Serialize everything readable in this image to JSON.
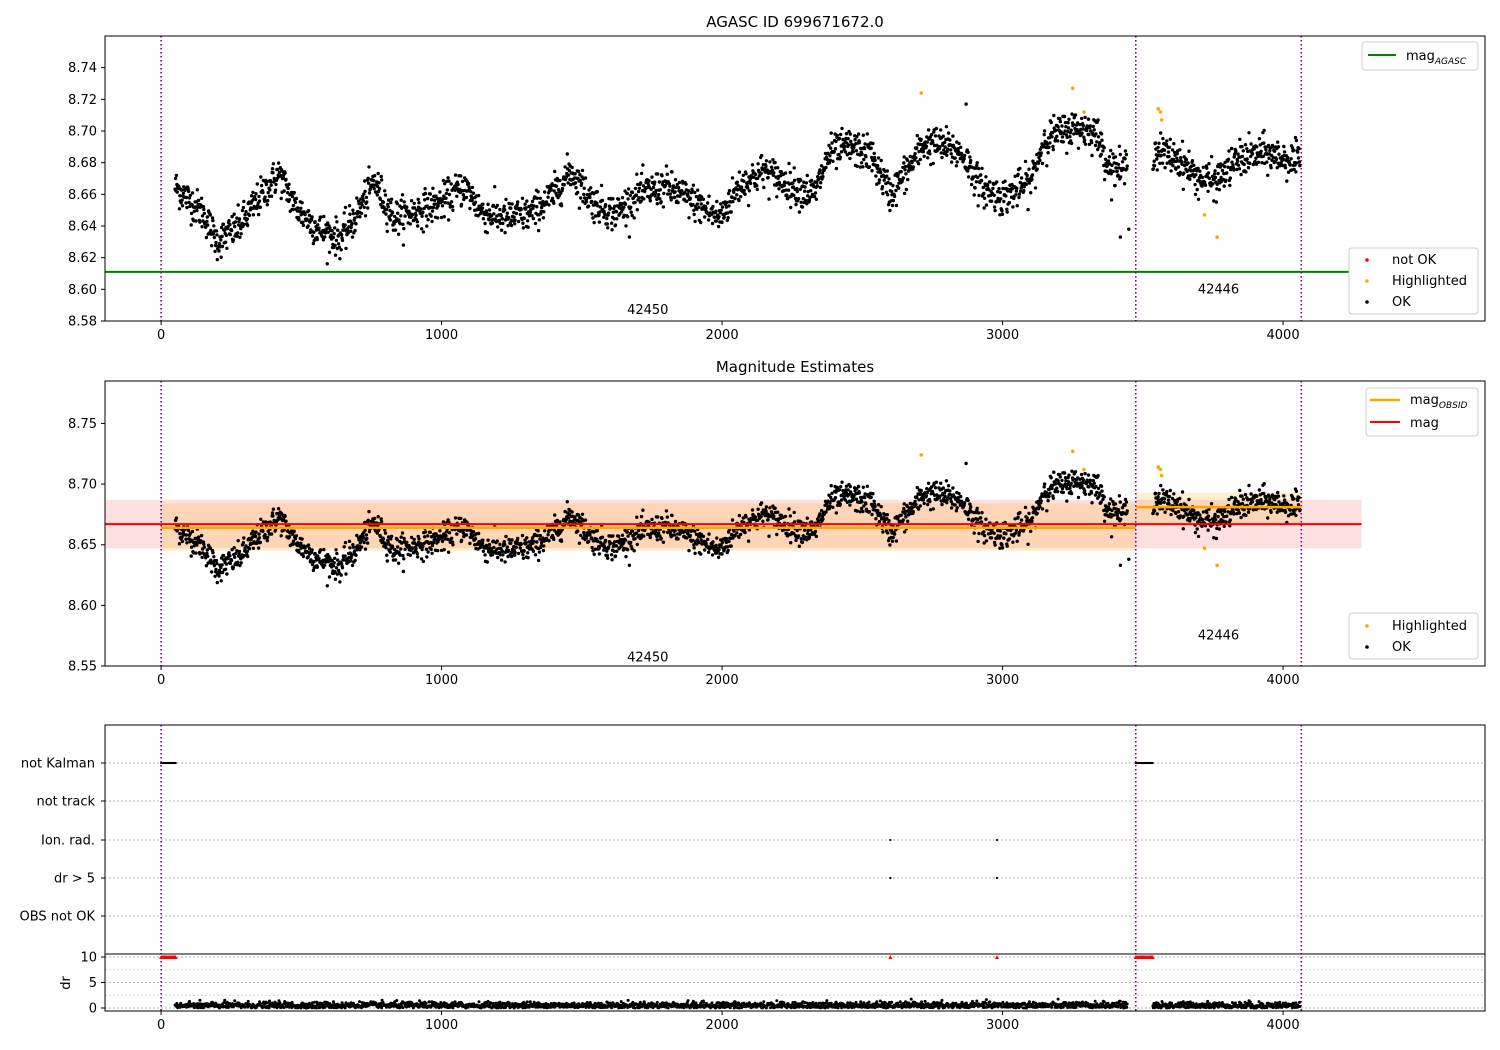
{
  "chart_data": [
    {
      "type": "scatter",
      "title": "AGASC ID 699671672.0",
      "xlim": [
        -200,
        4720
      ],
      "ylim": [
        8.58,
        8.76
      ],
      "x_ticks": [
        "0",
        "1000",
        "2000",
        "3000",
        "4000"
      ],
      "y_ticks": [
        "8.58",
        "8.60",
        "8.62",
        "8.64",
        "8.66",
        "8.68",
        "8.70",
        "8.72",
        "8.74"
      ],
      "grid": false,
      "vlines": [
        0,
        3475,
        4065
      ],
      "segment_labels": [
        {
          "text": "42450",
          "x": 1735,
          "y": 8.587
        },
        {
          "text": "42446",
          "x": 3770,
          "y": 8.6
        }
      ],
      "hlines": [
        {
          "name": "magAGASC",
          "y": 8.611,
          "color": "#008000"
        }
      ],
      "legend_top": {
        "placement": "top-right",
        "entries": [
          {
            "main": "mag",
            "sub": "AGASC",
            "color": "#008000"
          }
        ]
      },
      "legend_bottom": {
        "placement": "bottom-right",
        "entries": [
          {
            "label": "not OK",
            "color": "#ff0000"
          },
          {
            "label": "Highlighted",
            "color": "#ffa500"
          },
          {
            "label": "OK",
            "color": "#000000"
          }
        ]
      },
      "trend": [
        [
          50,
          8.665
        ],
        [
          150,
          8.648
        ],
        [
          200,
          8.63
        ],
        [
          280,
          8.64
        ],
        [
          360,
          8.66
        ],
        [
          420,
          8.673
        ],
        [
          480,
          8.652
        ],
        [
          560,
          8.638
        ],
        [
          640,
          8.632
        ],
        [
          690,
          8.645
        ],
        [
          760,
          8.668
        ],
        [
          830,
          8.645
        ],
        [
          920,
          8.65
        ],
        [
          1000,
          8.655
        ],
        [
          1080,
          8.665
        ],
        [
          1150,
          8.648
        ],
        [
          1230,
          8.645
        ],
        [
          1320,
          8.648
        ],
        [
          1400,
          8.66
        ],
        [
          1460,
          8.675
        ],
        [
          1540,
          8.655
        ],
        [
          1620,
          8.648
        ],
        [
          1700,
          8.66
        ],
        [
          1800,
          8.665
        ],
        [
          1900,
          8.655
        ],
        [
          1990,
          8.645
        ],
        [
          2060,
          8.665
        ],
        [
          2150,
          8.675
        ],
        [
          2250,
          8.665
        ],
        [
          2330,
          8.66
        ],
        [
          2380,
          8.685
        ],
        [
          2450,
          8.69
        ],
        [
          2530,
          8.685
        ],
        [
          2600,
          8.66
        ],
        [
          2660,
          8.675
        ],
        [
          2720,
          8.692
        ],
        [
          2800,
          8.69
        ],
        [
          2860,
          8.685
        ],
        [
          2920,
          8.665
        ],
        [
          3000,
          8.658
        ],
        [
          3100,
          8.668
        ],
        [
          3150,
          8.695
        ],
        [
          3250,
          8.702
        ],
        [
          3330,
          8.7
        ],
        [
          3380,
          8.678
        ],
        [
          3430,
          8.675
        ],
        [
          3475,
          8.688
        ],
        [
          3540,
          8.688
        ],
        [
          3630,
          8.682
        ],
        [
          3700,
          8.67
        ],
        [
          3760,
          8.668
        ],
        [
          3840,
          8.682
        ],
        [
          3930,
          8.686
        ],
        [
          4060,
          8.68
        ]
      ],
      "noise": 0.009,
      "highlighted": [
        [
          2710,
          8.724
        ],
        [
          3250,
          8.727
        ],
        [
          3555,
          8.714
        ],
        [
          3563,
          8.712
        ],
        [
          3567,
          8.707
        ],
        [
          3720,
          8.647
        ],
        [
          3765,
          8.633
        ],
        [
          3290,
          8.712
        ]
      ],
      "outliers": [
        [
          3420,
          8.633
        ],
        [
          3450,
          8.638
        ],
        [
          2870,
          8.717
        ]
      ]
    },
    {
      "type": "scatter",
      "title": "Magnitude Estimates",
      "xlim": [
        -200,
        4720
      ],
      "ylim": [
        8.55,
        8.785
      ],
      "x_ticks": [
        "0",
        "1000",
        "2000",
        "3000",
        "4000"
      ],
      "y_ticks": [
        "8.55",
        "8.60",
        "8.65",
        "8.70",
        "8.75"
      ],
      "grid": false,
      "vlines": [
        0,
        3475,
        4065
      ],
      "segment_labels": [
        {
          "text": "42450",
          "x": 1735,
          "y": 8.557
        },
        {
          "text": "42446",
          "x": 3770,
          "y": 8.575
        }
      ],
      "mag": {
        "y": 8.667,
        "band": [
          8.647,
          8.687
        ],
        "x_range": [
          -200,
          4280
        ],
        "color": "#ff0000"
      },
      "mag_obsid": [
        {
          "x_range": [
            0,
            3475
          ],
          "y": 8.664,
          "band": [
            8.645,
            8.684
          ]
        },
        {
          "x_range": [
            3475,
            4065
          ],
          "y": 8.681,
          "band": [
            8.668,
            8.693
          ]
        }
      ],
      "legend_top": {
        "placement": "top-right",
        "entries": [
          {
            "main": "mag",
            "sub": "OBSID",
            "color": "#ffa500"
          },
          {
            "main": "mag",
            "sub": "",
            "color": "#ff0000"
          }
        ]
      },
      "legend_bottom": {
        "placement": "bottom-right",
        "entries": [
          {
            "label": "Highlighted",
            "color": "#ffa500"
          },
          {
            "label": "OK",
            "color": "#000000"
          }
        ]
      }
    },
    {
      "type": "scatter",
      "xlim": [
        -200,
        4720
      ],
      "flag_rows": [
        "not Kalman",
        "not track",
        "Ion. rad.",
        "dr > 5",
        "OBS not OK"
      ],
      "flags": {
        "not Kalman": [
          [
            0,
            55
          ],
          [
            3475,
            3535
          ]
        ],
        "Ion. rad.": [
          2600,
          2980
        ],
        "dr > 5": [
          2600,
          2980
        ]
      },
      "dr_axis": {
        "ylabel": "dr",
        "ticks": [
          "0",
          "5",
          "10"
        ],
        "ylim": [
          -0.5,
          10.5
        ]
      },
      "dr_clipped": {
        "x": [
          [
            0,
            55
          ],
          [
            3475,
            3535
          ],
          2600,
          2980
        ],
        "value": 10
      },
      "x_ticks": [
        "0",
        "1000",
        "2000",
        "3000",
        "4000"
      ],
      "vlines": [
        0,
        3475,
        4065
      ]
    }
  ]
}
